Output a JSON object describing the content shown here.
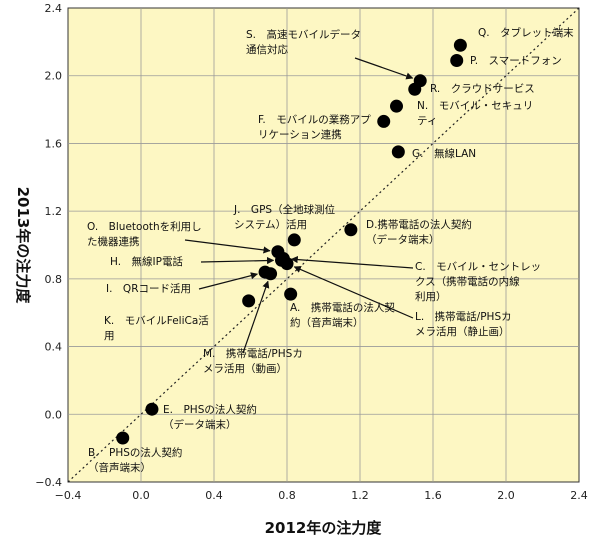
{
  "chart_data": {
    "type": "scatter",
    "title": "",
    "xlabel": "2012年の注力度",
    "ylabel": "2013年の注力度",
    "xlim": [
      -0.4,
      2.4
    ],
    "ylim": [
      -0.4,
      2.4
    ],
    "xticks": [
      "−0.4",
      "0.0",
      "0.4",
      "0.8",
      "1.2",
      "1.6",
      "2.0",
      "2.4"
    ],
    "yticks": [
      "−0.4",
      "0.0",
      "0.4",
      "0.8",
      "1.2",
      "1.6",
      "2.0",
      "2.4"
    ],
    "grid": true,
    "diagonal_reference_line": true,
    "colors": {
      "plot_background": "#fdf7c3",
      "marker": "#000000",
      "grid": "#9a9a9a"
    },
    "points": [
      {
        "id": "A",
        "label": [
          "A.　携帯電話の法人契",
          "約（音声端末）"
        ],
        "x": 0.82,
        "y": 0.71
      },
      {
        "id": "B",
        "label": [
          "B.　PHSの法人契約",
          "（音声端末）"
        ],
        "x": -0.1,
        "y": -0.14
      },
      {
        "id": "D",
        "label": [
          "D.携帯電話の法人契約",
          "（データ端末）"
        ],
        "x": 1.15,
        "y": 1.09
      },
      {
        "id": "E",
        "label": [
          "E.　PHSの法人契約",
          "（データ端末）"
        ],
        "x": 0.06,
        "y": 0.03
      },
      {
        "id": "F",
        "label": [
          "F.　モバイルの業務アプ",
          "リケーション連携"
        ],
        "x": 1.33,
        "y": 1.73
      },
      {
        "id": "G",
        "label": [
          "G.　無線LAN"
        ],
        "x": 1.41,
        "y": 1.55
      },
      {
        "id": "H",
        "label": [
          "H.　無線IP電話"
        ],
        "x": 0.77,
        "y": 0.91
      },
      {
        "id": "I",
        "label": [
          "I.　QRコード活用"
        ],
        "x": 0.68,
        "y": 0.84
      },
      {
        "id": "J",
        "label": [
          "J.　GPS（全地球測位",
          "システム）活用"
        ],
        "x": 0.84,
        "y": 1.03
      },
      {
        "id": "K",
        "label": [
          "K.　モバイルFeliCa活",
          "用"
        ],
        "x": 0.59,
        "y": 0.67
      },
      {
        "id": "L",
        "label": [
          "L.　携帯電話/PHSカ",
          "メラ活用（静止画）"
        ],
        "x": 0.8,
        "y": 0.89
      },
      {
        "id": "M",
        "label": [
          "M.　携帯電話/PHSカ",
          "メラ活用（動画）"
        ],
        "x": 0.71,
        "y": 0.83
      },
      {
        "id": "N",
        "label": [
          "N.　モバイル・セキュリ",
          "ティ"
        ],
        "x": 1.4,
        "y": 1.82
      },
      {
        "id": "O",
        "label": [
          "O.　Bluetoothを利用し",
          "た機器連携"
        ],
        "x": 0.75,
        "y": 0.96
      },
      {
        "id": "P",
        "label": [
          "P.　スマートフォン"
        ],
        "x": 1.73,
        "y": 2.09
      },
      {
        "id": "Q",
        "label": [
          "Q.　タブレット端末"
        ],
        "x": 1.75,
        "y": 2.18
      },
      {
        "id": "R",
        "label": [
          "R.　クラウドサービス"
        ],
        "x": 1.5,
        "y": 1.92
      },
      {
        "id": "S",
        "label": [
          "S.　高速モバイルデータ",
          "通信対応"
        ],
        "x": 1.53,
        "y": 1.97
      },
      {
        "id": "C",
        "label": [
          "C.　モバイル・セントレッ",
          "クス（携帯電話の内線",
          "利用）"
        ],
        "x": 0.78,
        "y": 0.92
      }
    ]
  }
}
